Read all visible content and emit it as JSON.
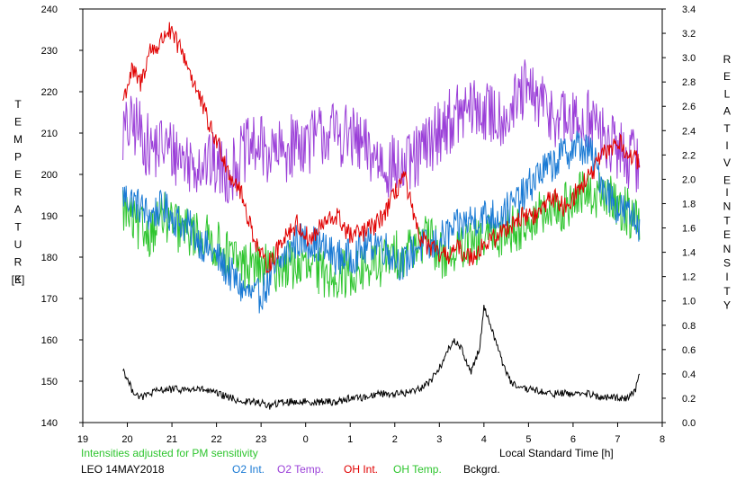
{
  "chart_data": {
    "type": "line",
    "left_axis": {
      "label_letters": [
        "T",
        "E",
        "M",
        "P",
        "E",
        "R",
        "A",
        "T",
        "U",
        "R",
        "E"
      ],
      "unit": "[K]",
      "ylim": [
        140,
        240
      ],
      "ticks": [
        "140",
        "150",
        "160",
        "170",
        "180",
        "190",
        "200",
        "210",
        "220",
        "230",
        "240"
      ]
    },
    "right_axis": {
      "label_word1": [
        "R",
        "E",
        "L",
        "A",
        "T",
        "I",
        "V",
        "E"
      ],
      "label_word2": [
        "I",
        "N",
        "T",
        "E",
        "N",
        "S",
        "I",
        "T",
        "Y"
      ],
      "ylim": [
        0.0,
        3.4
      ],
      "ticks": [
        "0.0",
        "0.2",
        "0.4",
        "0.6",
        "0.8",
        "1.0",
        "1.2",
        "1.4",
        "1.6",
        "1.8",
        "2.0",
        "2.2",
        "2.4",
        "2.6",
        "2.8",
        "3.0",
        "3.2",
        "3.4"
      ]
    },
    "x_axis": {
      "label": "Local Standard Time [h]",
      "tick_labels": [
        "19",
        "20",
        "21",
        "22",
        "23",
        "0",
        "1",
        "2",
        "3",
        "4",
        "5",
        "6",
        "7",
        "8"
      ],
      "range_hours": [
        19,
        32
      ]
    },
    "note": "Intensities adjusted for PM sensitivity",
    "station": "LEO 14MAY2018",
    "series": [
      {
        "name": "O2 Int.",
        "color": "#1a7ad4",
        "axis": "left",
        "x": [
          19.9,
          20.2,
          20.5,
          20.8,
          21.1,
          21.4,
          21.7,
          22.0,
          22.3,
          22.6,
          22.9,
          23.2,
          23.5,
          23.8,
          24.1,
          24.4,
          24.7,
          25.0,
          25.3,
          25.6,
          25.9,
          26.2,
          26.5,
          26.8,
          27.1,
          27.4,
          27.7,
          28.0,
          28.3,
          28.6,
          28.9,
          29.2,
          29.5,
          29.8,
          30.1,
          30.4,
          30.7,
          31.0,
          31.3,
          31.5
        ],
        "y": [
          195,
          193,
          190,
          192,
          189,
          187,
          183,
          180,
          176,
          172,
          170,
          174,
          180,
          184,
          184,
          182,
          180,
          180,
          182,
          184,
          181,
          178,
          183,
          182,
          185,
          187,
          189,
          190,
          190,
          192,
          195,
          200,
          202,
          205,
          207,
          205,
          197,
          192,
          190,
          188
        ]
      },
      {
        "name": "O2 Temp.",
        "color": "#9b40d8",
        "axis": "left",
        "x": [
          19.9,
          20.2,
          20.5,
          20.8,
          21.1,
          21.4,
          21.7,
          22.0,
          22.3,
          22.6,
          22.9,
          23.2,
          23.5,
          23.8,
          24.1,
          24.4,
          24.7,
          25.0,
          25.3,
          25.6,
          25.9,
          26.2,
          26.5,
          26.8,
          27.1,
          27.4,
          27.7,
          28.0,
          28.3,
          28.6,
          28.9,
          29.2,
          29.5,
          29.8,
          30.1,
          30.4,
          30.7,
          31.0,
          31.3,
          31.5
        ],
        "y": [
          210,
          212,
          206,
          207,
          205,
          203,
          203,
          202,
          200,
          205,
          207,
          205,
          205,
          208,
          208,
          210,
          210,
          209,
          206,
          204,
          202,
          201,
          204,
          208,
          212,
          214,
          216,
          215,
          214,
          215,
          220,
          218,
          215,
          213,
          212,
          214,
          208,
          206,
          204,
          202
        ]
      },
      {
        "name": "OH Int.",
        "color": "#e00000",
        "axis": "left",
        "x": [
          19.9,
          20.1,
          20.3,
          20.5,
          20.7,
          20.9,
          21.1,
          21.3,
          21.5,
          21.7,
          21.9,
          22.1,
          22.3,
          22.5,
          22.7,
          22.9,
          23.1,
          23.3,
          23.5,
          23.8,
          24.1,
          24.4,
          24.7,
          25.0,
          25.3,
          25.6,
          25.9,
          26.2,
          26.5,
          26.8,
          27.1,
          27.4,
          27.7,
          28.0,
          28.3,
          28.6,
          28.9,
          29.2,
          29.5,
          29.8,
          30.1,
          30.4,
          30.7,
          31.0,
          31.3,
          31.5
        ],
        "y": [
          218,
          225,
          222,
          230,
          231,
          235,
          232,
          228,
          222,
          216,
          210,
          206,
          200,
          197,
          190,
          183,
          178,
          180,
          185,
          188,
          184,
          188,
          190,
          185,
          186,
          188,
          193,
          200,
          186,
          182,
          180,
          182,
          180,
          183,
          185,
          188,
          190,
          190,
          195,
          192,
          196,
          200,
          205,
          208,
          204,
          203
        ]
      },
      {
        "name": "OH Temp.",
        "color": "#2ec52e",
        "axis": "left",
        "x": [
          19.9,
          20.2,
          20.5,
          20.8,
          21.1,
          21.4,
          21.7,
          22.0,
          22.3,
          22.6,
          22.9,
          23.2,
          23.5,
          23.8,
          24.1,
          24.4,
          24.7,
          25.0,
          25.3,
          25.6,
          25.9,
          26.2,
          26.5,
          26.8,
          27.1,
          27.4,
          27.7,
          28.0,
          28.3,
          28.6,
          28.9,
          29.2,
          29.5,
          29.8,
          30.1,
          30.4,
          30.7,
          31.0,
          31.3,
          31.5
        ],
        "y": [
          192,
          187,
          186,
          190,
          187,
          186,
          185,
          183,
          180,
          178,
          178,
          177,
          178,
          178,
          177,
          176,
          176,
          176,
          177,
          178,
          180,
          181,
          184,
          184,
          180,
          181,
          183,
          184,
          185,
          187,
          188,
          190,
          190,
          192,
          195,
          195,
          195,
          193,
          190,
          188
        ]
      },
      {
        "name": "Bckgrd.",
        "color": "#000000",
        "axis": "left",
        "x": [
          19.9,
          20.1,
          20.3,
          20.5,
          20.8,
          21.1,
          21.4,
          21.7,
          22.0,
          22.3,
          22.6,
          22.9,
          23.2,
          23.5,
          23.8,
          24.1,
          24.4,
          24.7,
          25.0,
          25.3,
          25.6,
          25.9,
          26.2,
          26.5,
          26.8,
          27.1,
          27.3,
          27.5,
          27.7,
          27.9,
          28.0,
          28.2,
          28.4,
          28.6,
          28.8,
          29.1,
          29.4,
          29.7,
          30.0,
          30.3,
          30.6,
          30.9,
          31.2,
          31.4,
          31.5
        ],
        "y": [
          153,
          148,
          146,
          147,
          148,
          148,
          148,
          148,
          147,
          146,
          145,
          145,
          144,
          145,
          145,
          145,
          145,
          145,
          146,
          146,
          147,
          147,
          147,
          148,
          150,
          155,
          160,
          158,
          152,
          158,
          168,
          162,
          155,
          150,
          148,
          148,
          147,
          147,
          147,
          147,
          146,
          146,
          146,
          148,
          153
        ]
      }
    ]
  }
}
